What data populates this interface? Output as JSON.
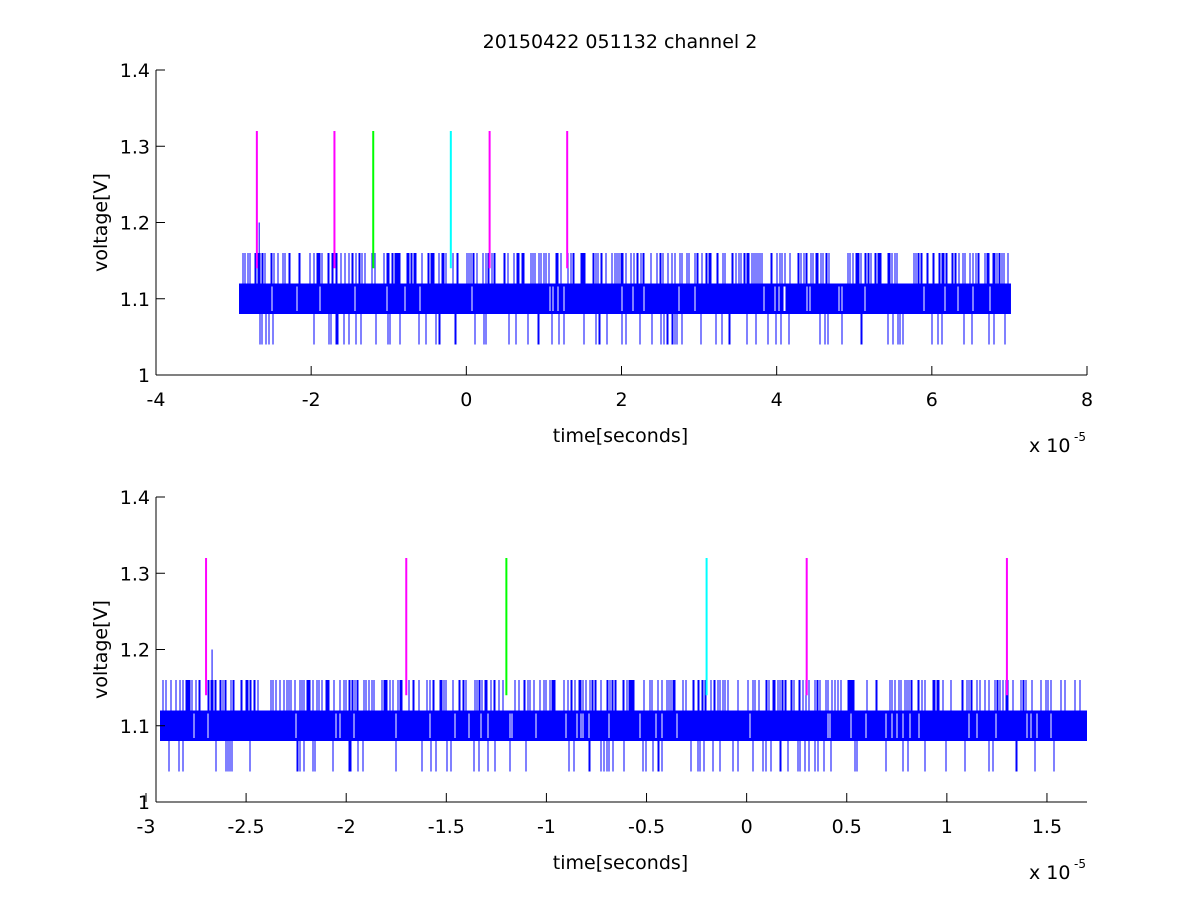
{
  "title": "20150422 051132 channel 2",
  "chart_data": [
    {
      "type": "line",
      "xlabel": "time[seconds]",
      "ylabel": "voltage[V]",
      "x_exponent_label": "x 10",
      "x_exponent": "-5",
      "xlim": [
        -4e-05,
        8e-05
      ],
      "ylim": [
        1,
        1.4
      ],
      "xticks": [
        -4,
        -2,
        0,
        2,
        4,
        6,
        8
      ],
      "xtick_labels": [
        "-4",
        "-2",
        "0",
        "2",
        "4",
        "6",
        "8"
      ],
      "yticks": [
        1,
        1.1,
        1.2,
        1.3,
        1.4
      ],
      "ytick_labels": [
        "1",
        "1.1",
        "1.2",
        "1.3",
        "1.4"
      ],
      "signal": {
        "name": "",
        "color": "#0000ff",
        "x_range": [
          -2.93e-05,
          7.02e-05
        ],
        "levels": [
          1.04,
          1.08,
          1.12,
          1.16
        ],
        "baseline_band": [
          1.08,
          1.12
        ],
        "max_value": 1.2,
        "max_at": -2.67e-05
      },
      "markers": [
        {
          "x": -2.7e-05,
          "y_bottom": 1.14,
          "y_top": 1.32,
          "color": "#ff00ff"
        },
        {
          "x": -1.7e-05,
          "y_bottom": 1.14,
          "y_top": 1.32,
          "color": "#ff00ff"
        },
        {
          "x": -1.2e-05,
          "y_bottom": 1.14,
          "y_top": 1.32,
          "color": "#00ff00"
        },
        {
          "x": -2e-06,
          "y_bottom": 1.14,
          "y_top": 1.32,
          "color": "#00ffff"
        },
        {
          "x": 3e-06,
          "y_bottom": 1.14,
          "y_top": 1.32,
          "color": "#ff00ff"
        },
        {
          "x": 1.3e-05,
          "y_bottom": 1.14,
          "y_top": 1.32,
          "color": "#ff00ff"
        }
      ]
    },
    {
      "type": "line",
      "xlabel": "time[seconds]",
      "ylabel": "voltage[V]",
      "x_exponent_label": "x 10",
      "x_exponent": "-5",
      "xlim": [
        -2.95e-05,
        1.7e-05
      ],
      "ylim": [
        1,
        1.4
      ],
      "xticks": [
        -3,
        -2.5,
        -2,
        -1.5,
        -1,
        -0.5,
        0,
        0.5,
        1,
        1.5
      ],
      "xtick_labels": [
        "-3",
        "-2.5",
        "-2",
        "-1.5",
        "-1",
        "-0.5",
        "0",
        "0.5",
        "1",
        "1.5"
      ],
      "yticks": [
        1,
        1.1,
        1.2,
        1.3,
        1.4
      ],
      "ytick_labels": [
        "1",
        "1.1",
        "1.2",
        "1.3",
        "1.4"
      ],
      "signal": {
        "name": "",
        "color": "#0000ff",
        "x_range": [
          -2.93e-05,
          1.7e-05
        ],
        "levels": [
          1.04,
          1.08,
          1.12,
          1.16
        ],
        "baseline_band": [
          1.08,
          1.12
        ],
        "max_value": 1.2,
        "max_at": -2.67e-05
      },
      "markers": [
        {
          "x": -2.7e-05,
          "y_bottom": 1.14,
          "y_top": 1.32,
          "color": "#ff00ff"
        },
        {
          "x": -1.7e-05,
          "y_bottom": 1.14,
          "y_top": 1.32,
          "color": "#ff00ff"
        },
        {
          "x": -1.2e-05,
          "y_bottom": 1.14,
          "y_top": 1.32,
          "color": "#00ff00"
        },
        {
          "x": -2e-06,
          "y_bottom": 1.14,
          "y_top": 1.32,
          "color": "#00ffff"
        },
        {
          "x": 3e-06,
          "y_bottom": 1.14,
          "y_top": 1.32,
          "color": "#ff00ff"
        },
        {
          "x": 1.3e-05,
          "y_bottom": 1.14,
          "y_top": 1.32,
          "color": "#ff00ff"
        }
      ]
    }
  ]
}
